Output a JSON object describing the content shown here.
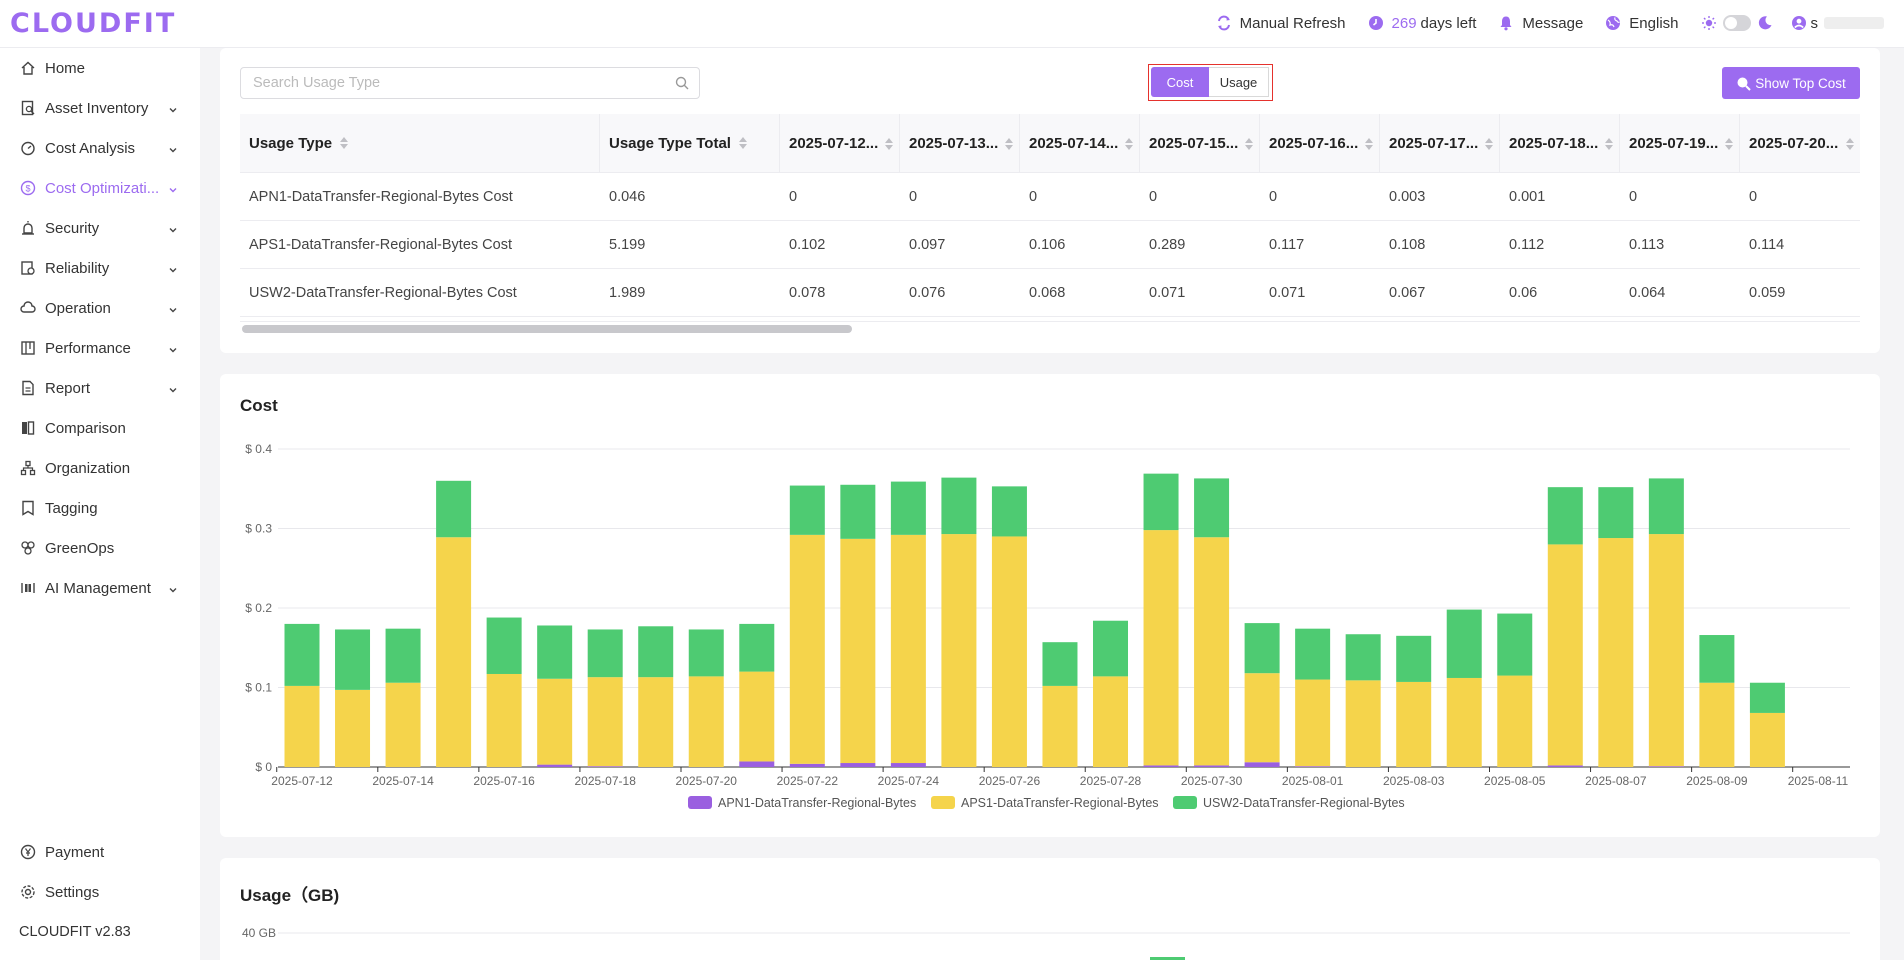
{
  "app": {
    "logo": "CLOUDFIT",
    "version": "CLOUDFIT v2.83"
  },
  "header": {
    "manual_refresh": "Manual Refresh",
    "days_number": "269",
    "days_text": "days left",
    "message": "Message",
    "language": "English",
    "user_initial": "s"
  },
  "sidebar": {
    "items": [
      {
        "label": "Home",
        "icon": "home-icon",
        "chevron": false,
        "active": false
      },
      {
        "label": "Asset Inventory",
        "icon": "inventory-icon",
        "chevron": true,
        "active": false
      },
      {
        "label": "Cost Analysis",
        "icon": "gauge-icon",
        "chevron": true,
        "active": false
      },
      {
        "label": "Cost Optimizati...",
        "icon": "dollar-icon",
        "chevron": true,
        "active": true
      },
      {
        "label": "Security",
        "icon": "alarm-icon",
        "chevron": true,
        "active": false
      },
      {
        "label": "Reliability",
        "icon": "reliability-icon",
        "chevron": true,
        "active": false
      },
      {
        "label": "Operation",
        "icon": "cloud-icon",
        "chevron": true,
        "active": false
      },
      {
        "label": "Performance",
        "icon": "performance-icon",
        "chevron": true,
        "active": false
      },
      {
        "label": "Report",
        "icon": "report-icon",
        "chevron": true,
        "active": false
      },
      {
        "label": "Comparison",
        "icon": "comparison-icon",
        "chevron": false,
        "active": false
      },
      {
        "label": "Organization",
        "icon": "organization-icon",
        "chevron": false,
        "active": false
      },
      {
        "label": "Tagging",
        "icon": "tag-icon",
        "chevron": false,
        "active": false
      },
      {
        "label": "GreenOps",
        "icon": "greenops-icon",
        "chevron": false,
        "active": false
      },
      {
        "label": "AI Management",
        "icon": "ai-icon",
        "chevron": true,
        "active": false
      }
    ],
    "bottom": [
      {
        "label": "Payment",
        "icon": "yen-icon"
      },
      {
        "label": "Settings",
        "icon": "gear-icon"
      }
    ]
  },
  "toolbar": {
    "search_placeholder": "Search Usage Type",
    "seg_cost": "Cost",
    "seg_usage": "Usage",
    "show_top_cost": "Show Top Cost"
  },
  "table": {
    "headers": [
      "Usage Type",
      "Usage Type Total",
      "2025-07-12...",
      "2025-07-13...",
      "2025-07-14...",
      "2025-07-15...",
      "2025-07-16...",
      "2025-07-17...",
      "2025-07-18...",
      "2025-07-19...",
      "2025-07-20..."
    ],
    "rows": [
      [
        "APN1-DataTransfer-Regional-Bytes Cost",
        "0.046",
        "0",
        "0",
        "0",
        "0",
        "0",
        "0.003",
        "0.001",
        "0",
        "0"
      ],
      [
        "APS1-DataTransfer-Regional-Bytes Cost",
        "5.199",
        "0.102",
        "0.097",
        "0.106",
        "0.289",
        "0.117",
        "0.108",
        "0.112",
        "0.113",
        "0.114"
      ],
      [
        "USW2-DataTransfer-Regional-Bytes Cost",
        "1.989",
        "0.078",
        "0.076",
        "0.068",
        "0.071",
        "0.071",
        "0.067",
        "0.06",
        "0.064",
        "0.059"
      ]
    ]
  },
  "cost_card_title": "Cost",
  "usage_card_title": "Usage（GB)",
  "chart_data": [
    {
      "type": "bar",
      "stacked": true,
      "title": "Cost",
      "ylim": [
        0,
        0.4
      ],
      "yticks": [
        "$ 0",
        "$ 0.1",
        "$ 0.2",
        "$ 0.3",
        "$ 0.4"
      ],
      "xticks": [
        "2025-07-12",
        "2025-07-14",
        "2025-07-16",
        "2025-07-18",
        "2025-07-20",
        "2025-07-22",
        "2025-07-24",
        "2025-07-26",
        "2025-07-28",
        "2025-07-30",
        "2025-08-01",
        "2025-08-03",
        "2025-08-05",
        "2025-08-07",
        "2025-08-09",
        "2025-08-11"
      ],
      "legend_position": "bottom",
      "colors": [
        "#9a5fe0",
        "#f5d44b",
        "#4ecb72"
      ],
      "categories": [
        "2025-07-12",
        "2025-07-13",
        "2025-07-14",
        "2025-07-15",
        "2025-07-16",
        "2025-07-17",
        "2025-07-18",
        "2025-07-19",
        "2025-07-20",
        "2025-07-21",
        "2025-07-22",
        "2025-07-23",
        "2025-07-24",
        "2025-07-25",
        "2025-07-26",
        "2025-07-27",
        "2025-07-28",
        "2025-07-29",
        "2025-07-30",
        "2025-07-31",
        "2025-08-01",
        "2025-08-02",
        "2025-08-03",
        "2025-08-04",
        "2025-08-05",
        "2025-08-06",
        "2025-08-07",
        "2025-08-08",
        "2025-08-09",
        "2025-08-10",
        "2025-08-11"
      ],
      "series": [
        {
          "name": "APN1-DataTransfer-Regional-Bytes",
          "values": [
            0,
            0,
            0,
            0,
            0,
            0.003,
            0.001,
            0,
            0,
            0.007,
            0.004,
            0.005,
            0.005,
            0,
            0,
            0,
            0,
            0.002,
            0.002,
            0.006,
            0.001,
            0,
            0,
            0,
            0,
            0.002,
            0,
            0.001,
            0,
            0,
            0
          ]
        },
        {
          "name": "APS1-DataTransfer-Regional-Bytes",
          "values": [
            0.102,
            0.097,
            0.106,
            0.289,
            0.117,
            0.108,
            0.112,
            0.113,
            0.114,
            0.113,
            0.288,
            0.282,
            0.287,
            0.293,
            0.29,
            0.102,
            0.114,
            0.296,
            0.287,
            0.112,
            0.109,
            0.109,
            0.107,
            0.112,
            0.115,
            0.278,
            0.288,
            0.292,
            0.106,
            0.068,
            0
          ]
        },
        {
          "name": "USW2-DataTransfer-Regional-Bytes",
          "values": [
            0.078,
            0.076,
            0.068,
            0.071,
            0.071,
            0.067,
            0.06,
            0.064,
            0.059,
            0.06,
            0.062,
            0.068,
            0.067,
            0.071,
            0.063,
            0.055,
            0.07,
            0.071,
            0.074,
            0.063,
            0.064,
            0.058,
            0.058,
            0.086,
            0.078,
            0.072,
            0.064,
            0.07,
            0.06,
            0.038,
            0
          ]
        }
      ]
    },
    {
      "type": "bar",
      "stacked": true,
      "title": "Usage（GB)",
      "yticks": [
        "40 GB"
      ]
    }
  ]
}
